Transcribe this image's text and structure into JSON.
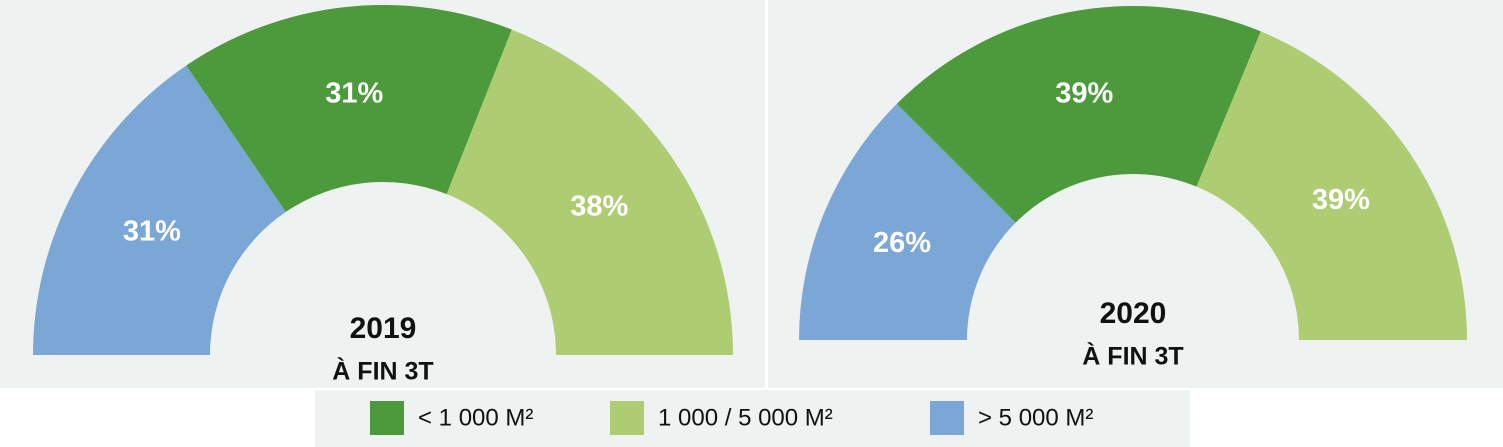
{
  "chart_data": [
    {
      "type": "pie",
      "title": "2019",
      "subtitle": "À FIN 3T",
      "categories": [
        "> 5 000 M²",
        "< 1 000 M²",
        "1 000 / 5 000 M²"
      ],
      "values": [
        31,
        31,
        38
      ],
      "value_labels": [
        "31%",
        "31%",
        "38%"
      ],
      "colors": [
        "#7ba7d7",
        "#4c9a3c",
        "#aecd72"
      ]
    },
    {
      "type": "pie",
      "title": "2020",
      "subtitle": "À FIN 3T",
      "categories": [
        "> 5 000 M²",
        "< 1 000 M²",
        "1 000 / 5 000 M²"
      ],
      "values": [
        26,
        39,
        39
      ],
      "value_labels": [
        "26%",
        "39%",
        "39%"
      ],
      "colors": [
        "#7ba7d7",
        "#4c9a3c",
        "#aecd72"
      ]
    }
  ]
}
